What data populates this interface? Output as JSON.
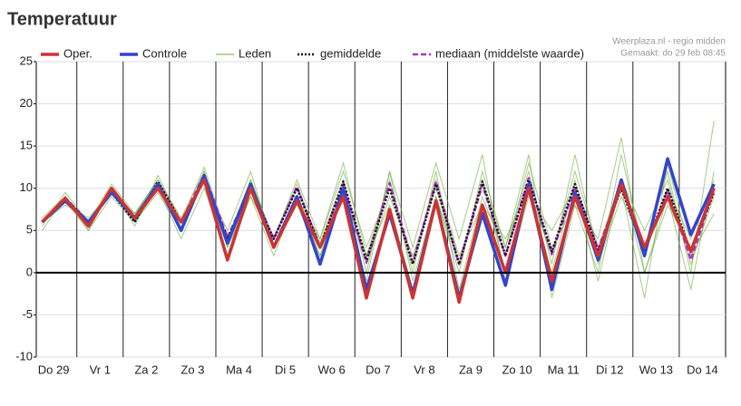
{
  "chart_data": {
    "type": "line",
    "title": "Temperatuur",
    "source": "Weerplaza.nl - regio midden",
    "created": "Gemaakt: do 29 feb 08:45",
    "x": [
      6,
      18,
      30,
      42,
      54,
      66,
      78,
      90,
      102,
      114,
      126,
      138,
      150,
      162,
      174,
      186,
      198,
      210,
      222,
      234,
      246,
      258,
      270,
      282,
      294,
      306,
      318,
      330,
      342,
      354
    ],
    "xlim": [
      3,
      360
    ],
    "xticks": [
      {
        "value": 12,
        "label": "Do 29"
      },
      {
        "value": 36,
        "label": "Vr 1"
      },
      {
        "value": 60,
        "label": "Za 2"
      },
      {
        "value": 84,
        "label": "Zo 3"
      },
      {
        "value": 108,
        "label": "Ma 4"
      },
      {
        "value": 132,
        "label": "Di 5"
      },
      {
        "value": 156,
        "label": "Wo 6"
      },
      {
        "value": 180,
        "label": "Do 7"
      },
      {
        "value": 204,
        "label": "Vr 8"
      },
      {
        "value": 228,
        "label": "Za 9"
      },
      {
        "value": 252,
        "label": "Zo 10"
      },
      {
        "value": 276,
        "label": "Ma 11"
      },
      {
        "value": 300,
        "label": "Di 12"
      },
      {
        "value": 324,
        "label": "Wo 13"
      },
      {
        "value": 348,
        "label": "Do 14"
      }
    ],
    "xgrid": [
      24,
      48,
      72,
      96,
      120,
      144,
      168,
      192,
      216,
      240,
      264,
      288,
      312,
      336
    ],
    "ylim": [
      -10,
      25
    ],
    "yticks": [
      -10,
      -5,
      0,
      5,
      10,
      15,
      20,
      25
    ],
    "grid": true,
    "zero_line": true,
    "series": [
      {
        "name": "Oper.",
        "color": "#cc3333",
        "style": "solid",
        "width": 3.5,
        "values": [
          6,
          8.8,
          5.5,
          10,
          6.5,
          10,
          6,
          11,
          1.5,
          10,
          3,
          8.5,
          3,
          9,
          -3,
          7.5,
          -3,
          8.5,
          -3.5,
          8,
          0,
          10,
          -1,
          9,
          2,
          10.5,
          3,
          9,
          2.5,
          10
        ]
      },
      {
        "name": "Controle",
        "color": "#3344cc",
        "style": "solid",
        "width": 3.5,
        "values": [
          6,
          8.5,
          6,
          9.5,
          6.5,
          10.5,
          5,
          11.5,
          3.5,
          10.5,
          3,
          9,
          1,
          10,
          -2,
          7,
          -2.5,
          8.5,
          -3,
          7,
          -1.5,
          10.5,
          -2,
          9.5,
          1.5,
          11,
          2,
          13.5,
          4.5,
          10.5
        ]
      },
      {
        "name": "Leden",
        "color": "#6aaa3a",
        "style": "solid",
        "width": 1,
        "members": [
          [
            6.5,
            9,
            6,
            10.5,
            7,
            11,
            6.5,
            12,
            2,
            11,
            4,
            10,
            3.5,
            11,
            0,
            12,
            -1,
            9,
            0,
            12,
            3,
            14,
            -3,
            8,
            4,
            16,
            0,
            9,
            -2,
            12
          ],
          [
            6,
            8.5,
            5,
            9,
            6,
            10,
            5,
            11,
            3,
            9,
            2,
            9,
            2,
            10,
            1,
            9,
            2,
            10,
            1,
            11,
            0,
            10,
            2,
            12,
            3,
            11,
            5,
            11,
            1,
            9
          ],
          [
            5.5,
            9.5,
            6,
            10,
            5.5,
            11.5,
            6,
            12.5,
            4,
            11,
            4,
            10.5,
            3,
            9,
            2,
            11,
            0,
            12,
            -2,
            9,
            2,
            13,
            3,
            8,
            0,
            14,
            2,
            10,
            4,
            11
          ],
          [
            6,
            9,
            5,
            10,
            6,
            10,
            4,
            10,
            2,
            9,
            4,
            11,
            4,
            12,
            3,
            10,
            1,
            11,
            2,
            8,
            4,
            10,
            0,
            11,
            1,
            9,
            3,
            12,
            0,
            18
          ],
          [
            6,
            8,
            6.5,
            9.5,
            7,
            11,
            6,
            11,
            5,
            12,
            3,
            8,
            2,
            9,
            -1,
            12,
            3,
            13,
            4,
            14,
            -1,
            9,
            5,
            10,
            -1,
            11,
            0,
            8,
            3,
            10
          ],
          [
            5,
            9,
            5.5,
            10,
            6,
            9.5,
            5,
            12,
            3,
            10,
            3,
            9,
            4,
            13,
            2,
            8,
            -2,
            9,
            1,
            11,
            3,
            12,
            1,
            14,
            2,
            10,
            -3,
            13,
            2,
            7
          ]
        ]
      },
      {
        "name": "gemiddelde",
        "color": "#111111",
        "style": "dotted",
        "width": 2.5,
        "values": [
          6,
          8.8,
          6,
          9.5,
          6,
          10.8,
          6,
          11,
          4,
          10,
          4,
          10,
          3,
          10.8,
          1.5,
          10,
          1,
          10.5,
          1,
          10.8,
          2,
          11,
          2.5,
          10.5,
          2.5,
          10,
          2.5,
          10,
          2.5,
          9.5
        ]
      },
      {
        "name": "mediaan (middelste waarde)",
        "color": "#b030d0",
        "style": "dashed",
        "width": 2.5,
        "values": [
          6,
          8.9,
          6,
          9.6,
          6.2,
          10.6,
          6,
          11.6,
          4.2,
          10.2,
          4,
          10.2,
          3,
          10.5,
          1.2,
          10.6,
          1.2,
          10.8,
          1,
          10.4,
          2,
          11.2,
          2.2,
          10.2,
          2.8,
          10.2,
          2.5,
          9.8,
          1.5,
          9.8
        ]
      }
    ]
  }
}
